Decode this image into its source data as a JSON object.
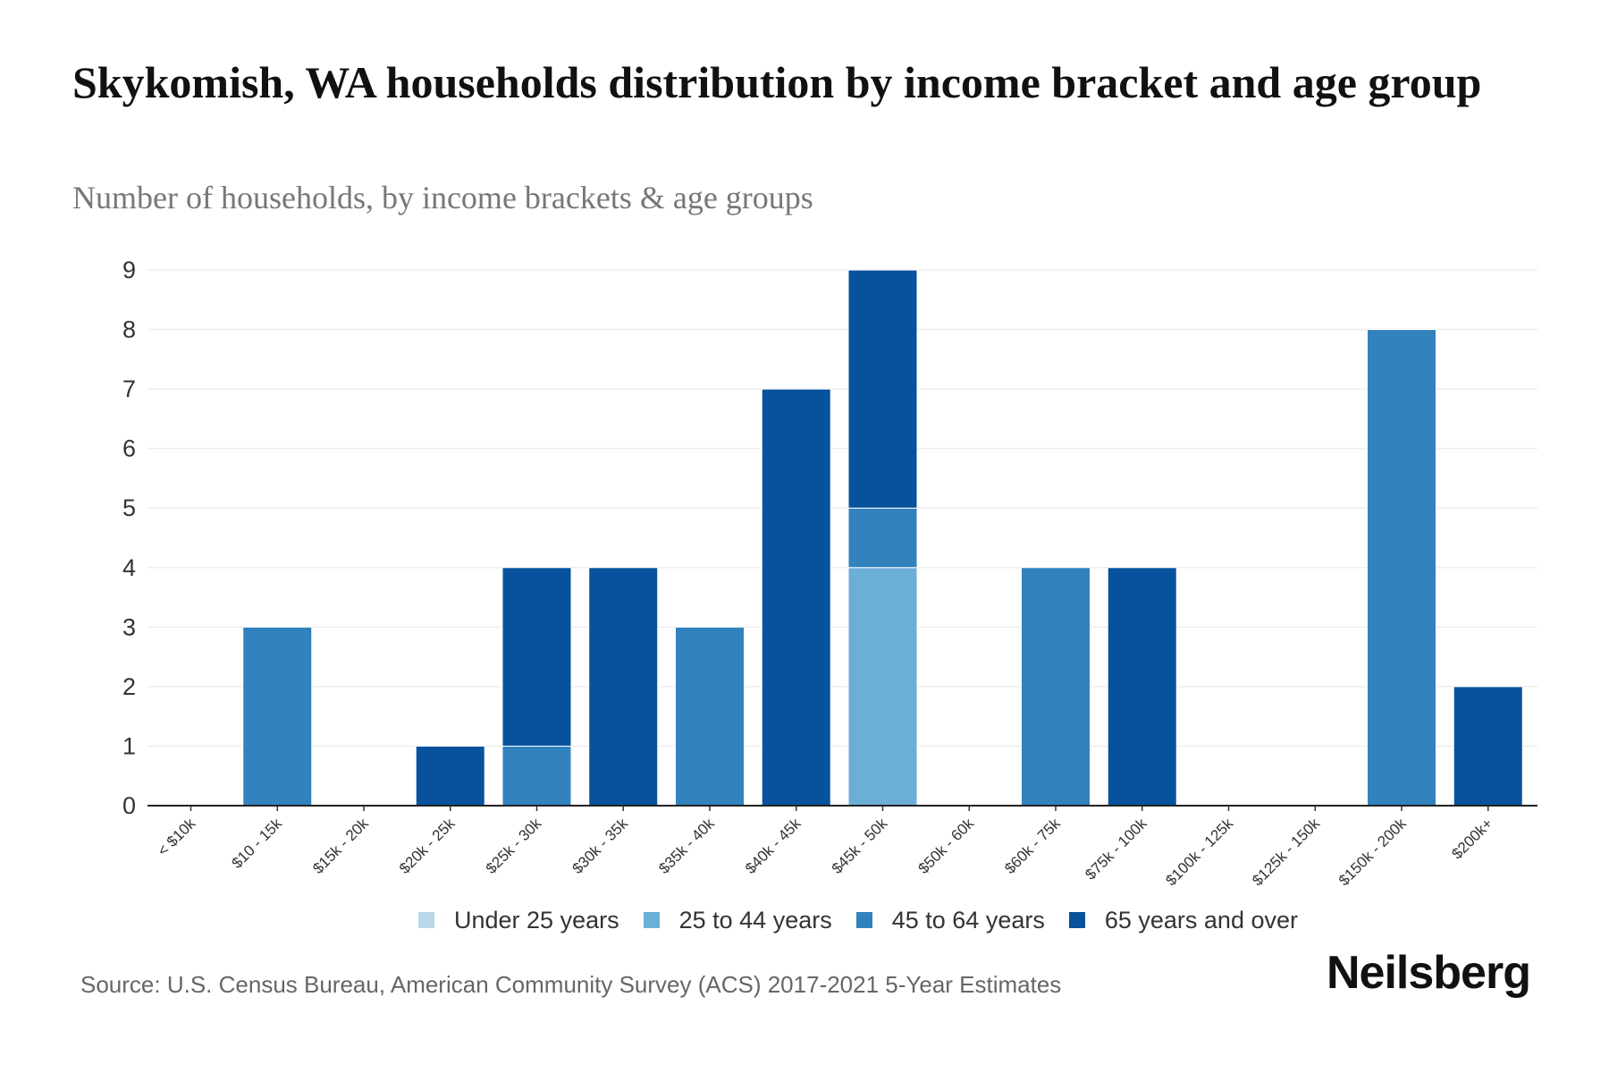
{
  "header": {
    "title": "Skykomish, WA households distribution by income bracket and age group",
    "subtitle": "Number of households, by income brackets & age groups"
  },
  "legend": {
    "items": [
      {
        "label": "Under 25 years",
        "color": "#b9d7ea"
      },
      {
        "label": "25 to 44 years",
        "color": "#6baed6"
      },
      {
        "label": "45 to 64 years",
        "color": "#3182bd"
      },
      {
        "label": "65 years and over",
        "color": "#08519c"
      }
    ]
  },
  "footer": {
    "source": "Source: U.S. Census Bureau, American Community Survey (ACS) 2017-2021 5-Year Estimates",
    "brand": "Neilsberg"
  },
  "chart_data": {
    "type": "bar",
    "stacked": true,
    "title": "Skykomish, WA households distribution by income bracket and age group",
    "subtitle": "Number of households, by income brackets & age groups",
    "xlabel": "",
    "ylabel": "",
    "ylim": [
      0,
      9
    ],
    "yticks": [
      0,
      1,
      2,
      3,
      4,
      5,
      6,
      7,
      8,
      9
    ],
    "grid": true,
    "legend_position": "bottom",
    "categories": [
      "< $10k",
      "$10 - 15k",
      "$15k - 20k",
      "$20k - 25k",
      "$25k - 30k",
      "$30k - 35k",
      "$35k - 40k",
      "$40k - 45k",
      "$45k - 50k",
      "$50k - 60k",
      "$60k - 75k",
      "$75k - 100k",
      "$100k - 125k",
      "$125k - 150k",
      "$150k - 200k",
      "$200k+"
    ],
    "series": [
      {
        "name": "Under 25 years",
        "color": "#b9d7ea",
        "values": [
          0,
          0,
          0,
          0,
          0,
          0,
          0,
          0,
          0,
          0,
          0,
          0,
          0,
          0,
          0,
          0
        ]
      },
      {
        "name": "25 to 44 years",
        "color": "#6baed6",
        "values": [
          0,
          0,
          0,
          0,
          0,
          0,
          0,
          0,
          4,
          0,
          0,
          0,
          0,
          0,
          0,
          0
        ]
      },
      {
        "name": "45 to 64 years",
        "color": "#3182bd",
        "values": [
          0,
          3,
          0,
          0,
          1,
          0,
          3,
          0,
          1,
          0,
          4,
          0,
          0,
          0,
          8,
          0
        ]
      },
      {
        "name": "65 years and over",
        "color": "#08519c",
        "values": [
          0,
          0,
          0,
          1,
          3,
          4,
          0,
          7,
          4,
          0,
          0,
          4,
          0,
          0,
          0,
          2
        ]
      }
    ]
  }
}
